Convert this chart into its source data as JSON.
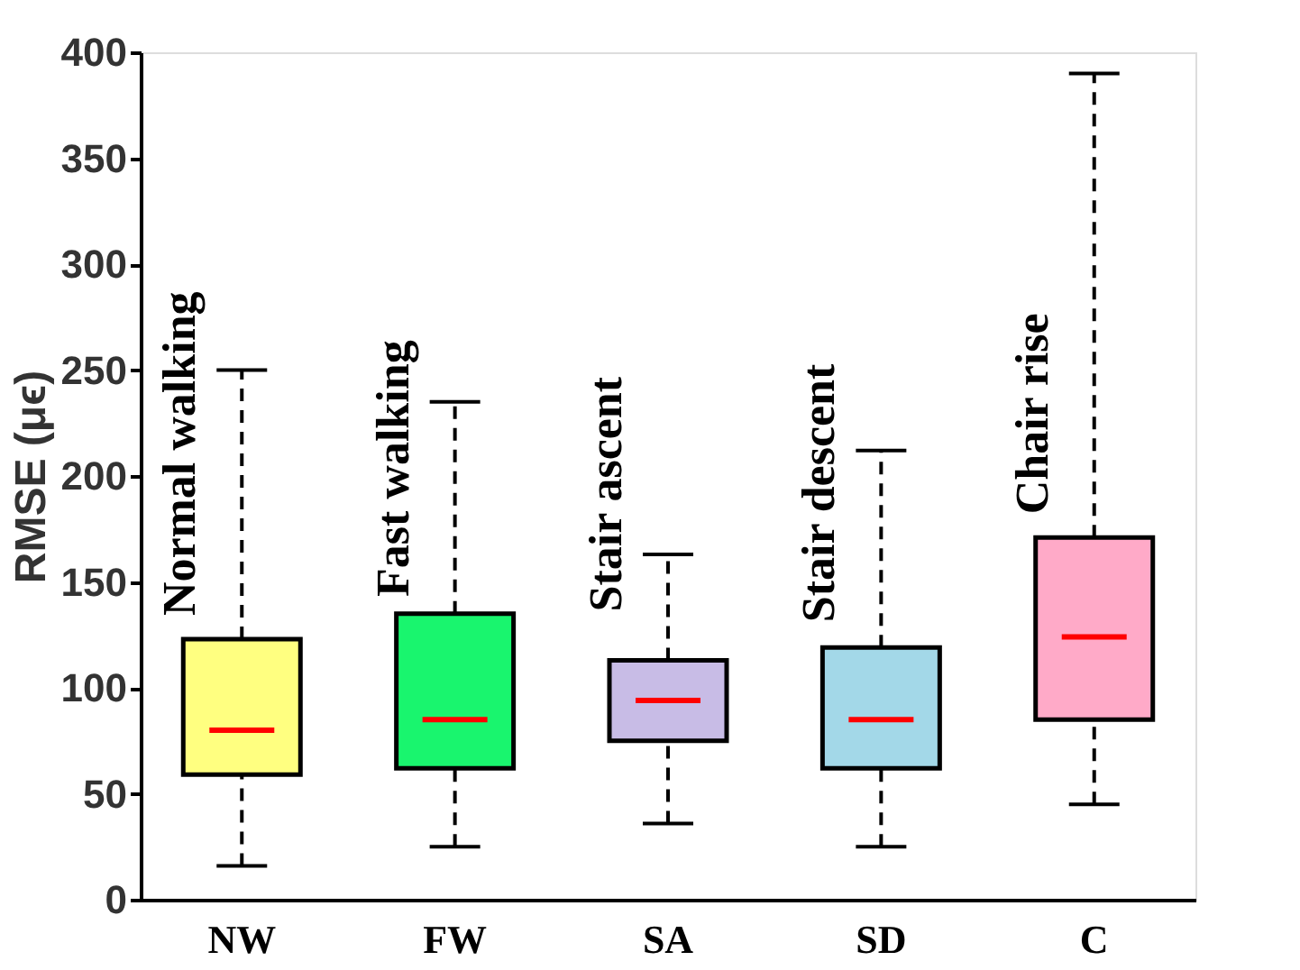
{
  "chart_data": {
    "type": "box",
    "ylabel": "RMSE (μϵ)",
    "categories": [
      "NW",
      "FW",
      "SA",
      "SD",
      "C"
    ],
    "boxes": [
      {
        "low": 16,
        "q1": 59,
        "median": 80,
        "q3": 123,
        "high": 250
      },
      {
        "low": 25,
        "q1": 62,
        "median": 85,
        "q3": 135,
        "high": 235
      },
      {
        "low": 36,
        "q1": 75,
        "median": 94,
        "q3": 113,
        "high": 163
      },
      {
        "low": 25,
        "q1": 62,
        "median": 85,
        "q3": 119,
        "high": 212
      },
      {
        "low": 45,
        "q1": 85,
        "median": 124,
        "q3": 171,
        "high": 390
      }
    ],
    "colors": [
      "#ffff80",
      "#19f56e",
      "#c8bce6",
      "#a3d8e8",
      "#ffaac8"
    ],
    "ylim": [
      0,
      400
    ],
    "yticks": [
      0,
      50,
      100,
      150,
      200,
      250,
      300,
      350,
      400
    ],
    "grid": false,
    "annotations": [
      {
        "text": "Normal walking",
        "x": "NW",
        "y": 134
      },
      {
        "text": "Fast walking",
        "x": "FW",
        "y": 143
      },
      {
        "text": "Stair ascent",
        "x": "SA",
        "y": 136
      },
      {
        "text": "Stair descent",
        "x": "SD",
        "y": 131
      },
      {
        "text": "Chair rise",
        "x": "C",
        "y": 182
      }
    ]
  }
}
